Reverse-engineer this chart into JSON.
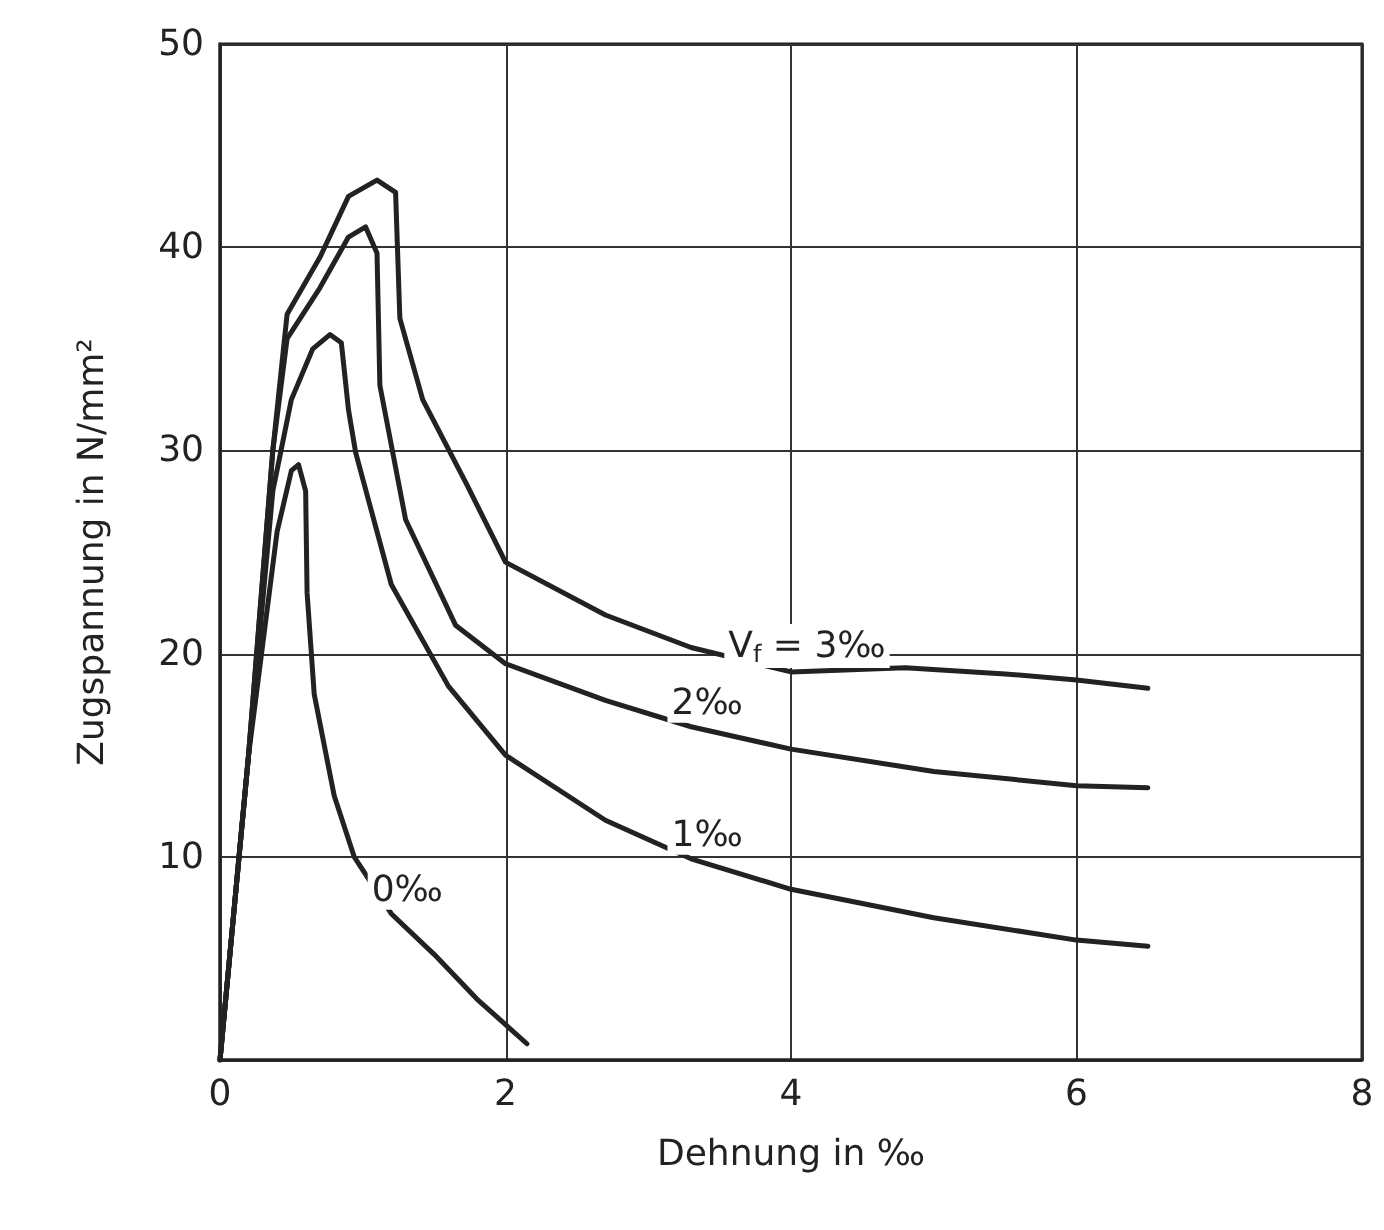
{
  "chart_data": {
    "type": "line",
    "xlabel": "Dehnung in ‰",
    "ylabel": "Zugspannung in N/mm²",
    "xlim": [
      0,
      8
    ],
    "ylim": [
      0,
      50
    ],
    "xticks": [
      0,
      2,
      4,
      6,
      8
    ],
    "yticks": [
      {
        "value": 0,
        "label": null
      },
      10,
      20,
      30,
      40,
      50
    ],
    "grid": true,
    "marker": "none",
    "line_style": "solid",
    "series": [
      {
        "name": "0‰",
        "color": "#222222",
        "x": [
          0,
          0.2,
          0.4,
          0.5,
          0.55,
          0.6,
          0.61,
          0.66,
          0.8,
          0.94,
          1.2,
          1.5,
          1.8,
          2.15
        ],
        "values": [
          0,
          15,
          26,
          29,
          29.3,
          28,
          23,
          18,
          13,
          10,
          7.2,
          5.2,
          3,
          0.8
        ]
      },
      {
        "name": "1‰",
        "color": "#222222",
        "x": [
          0,
          0.2,
          0.37,
          0.5,
          0.65,
          0.77,
          0.85,
          0.9,
          0.95,
          1.2,
          1.6,
          2,
          2.7,
          3.3,
          4,
          5,
          6,
          6.5
        ],
        "values": [
          0,
          15,
          28,
          32.5,
          35,
          35.7,
          35.3,
          32,
          29.9,
          23.4,
          18.4,
          15,
          11.8,
          9.9,
          8.4,
          7,
          5.9,
          5.6
        ]
      },
      {
        "name": "2‰",
        "color": "#222222",
        "x": [
          0,
          0.2,
          0.37,
          0.47,
          0.7,
          0.9,
          1.02,
          1.1,
          1.12,
          1.3,
          1.65,
          2,
          2.7,
          3.3,
          4,
          5,
          6,
          6.5
        ],
        "values": [
          0,
          15,
          30,
          35.5,
          38,
          40.5,
          41,
          39.7,
          33.2,
          26.6,
          21.4,
          19.5,
          17.7,
          16.4,
          15.3,
          14.2,
          13.5,
          13.4
        ]
      },
      {
        "name": "V$_{f}$ = 3‰",
        "color": "#222222",
        "x": [
          0,
          0.2,
          0.37,
          0.47,
          0.7,
          0.9,
          1.1,
          1.23,
          1.26,
          1.42,
          1.73,
          2,
          2.7,
          3.3,
          4,
          4.8,
          5.5,
          6,
          6.5
        ],
        "values": [
          0,
          15,
          30,
          36.7,
          39.5,
          42.5,
          43.3,
          42.7,
          36.5,
          32.5,
          28.3,
          24.5,
          21.9,
          20.3,
          19.1,
          19.3,
          19,
          18.7,
          18.3
        ]
      }
    ]
  }
}
